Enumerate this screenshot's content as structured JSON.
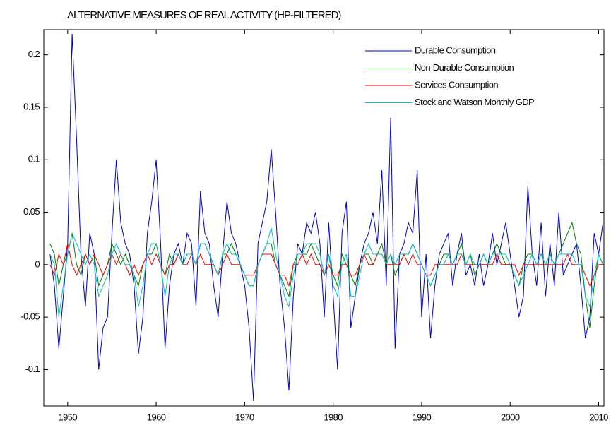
{
  "chart_data": {
    "type": "line",
    "title": "ALTERNATIVE MEASURES OF REAL ACTIVITY (HP-FILTERED)",
    "x": [
      1948,
      1948.5,
      1949,
      1949.5,
      1950,
      1950.5,
      1951,
      1951.5,
      1952,
      1952.5,
      1953,
      1953.5,
      1954,
      1954.5,
      1955,
      1955.5,
      1956,
      1956.5,
      1957,
      1957.5,
      1958,
      1958.5,
      1959,
      1959.5,
      1960,
      1960.5,
      1961,
      1961.5,
      1962,
      1962.5,
      1963,
      1963.5,
      1964,
      1964.5,
      1965,
      1965.5,
      1966,
      1966.5,
      1967,
      1967.5,
      1968,
      1968.5,
      1969,
      1969.5,
      1970,
      1970.5,
      1971,
      1971.5,
      1972,
      1972.5,
      1973,
      1973.5,
      1974,
      1974.5,
      1975,
      1975.5,
      1976,
      1976.5,
      1977,
      1977.5,
      1978,
      1978.5,
      1979,
      1979.5,
      1980,
      1980.5,
      1981,
      1981.5,
      1982,
      1982.5,
      1983,
      1983.5,
      1984,
      1984.5,
      1985,
      1985.5,
      1986,
      1986.5,
      1987,
      1987.5,
      1988,
      1988.5,
      1989,
      1989.5,
      1990,
      1990.5,
      1991,
      1991.5,
      1992,
      1992.5,
      1993,
      1993.5,
      1994,
      1994.5,
      1995,
      1995.5,
      1996,
      1996.5,
      1997,
      1997.5,
      1998,
      1998.5,
      1999,
      1999.5,
      2000,
      2000.5,
      2001,
      2001.5,
      2002,
      2002.5,
      2003,
      2003.5,
      2004,
      2004.5,
      2005,
      2005.5,
      2006,
      2006.5,
      2007,
      2007.5,
      2008,
      2008.5,
      2009,
      2009.5,
      2010,
      2010.5
    ],
    "series": [
      {
        "name": "Durable Consumption",
        "color": "#0000cc",
        "values": [
          0.01,
          -0.02,
          -0.08,
          -0.03,
          0.02,
          0.22,
          0.12,
          0.01,
          -0.04,
          0.03,
          0.01,
          -0.1,
          -0.06,
          -0.05,
          0.03,
          0.1,
          0.04,
          0.02,
          0.01,
          -0.02,
          -0.085,
          -0.05,
          0.03,
          0.06,
          0.1,
          0.02,
          -0.08,
          -0.02,
          0.01,
          0.02,
          0.0,
          0.03,
          0.02,
          -0.04,
          0.07,
          0.03,
          0.02,
          -0.02,
          -0.05,
          0.01,
          0.06,
          0.03,
          0.02,
          0.0,
          -0.02,
          -0.06,
          -0.13,
          0.02,
          0.04,
          0.06,
          0.11,
          0.05,
          -0.02,
          -0.06,
          -0.12,
          -0.03,
          0.02,
          0.01,
          0.04,
          0.03,
          0.05,
          0.02,
          -0.05,
          0.04,
          -0.03,
          -0.1,
          0.03,
          0.06,
          -0.06,
          -0.03,
          0.0,
          0.02,
          0.03,
          0.05,
          0.02,
          0.09,
          -0.02,
          0.14,
          -0.08,
          0.01,
          0.02,
          0.04,
          0.03,
          0.09,
          -0.05,
          0.01,
          -0.07,
          -0.02,
          0.01,
          0.02,
          0.03,
          -0.02,
          0.01,
          0.03,
          -0.01,
          0.0,
          -0.02,
          0.01,
          -0.02,
          0.0,
          0.03,
          0.0,
          0.02,
          0.04,
          0.01,
          -0.02,
          -0.05,
          -0.03,
          0.075,
          0.01,
          -0.02,
          0.04,
          -0.03,
          0.02,
          -0.02,
          0.05,
          -0.01,
          0.0,
          0.01,
          0.02,
          -0.02,
          -0.07,
          -0.05,
          0.03,
          0.01,
          0.04
        ]
      },
      {
        "name": "Non-Durable Consumption",
        "color": "#008000",
        "values": [
          0.02,
          0.01,
          -0.02,
          0.0,
          0.01,
          0.03,
          0.0,
          -0.01,
          0.01,
          0.0,
          0.01,
          -0.02,
          -0.01,
          0.0,
          0.02,
          0.01,
          0.0,
          0.01,
          0.0,
          -0.01,
          -0.02,
          0.0,
          0.01,
          0.01,
          0.02,
          0.0,
          -0.01,
          0.01,
          0.0,
          0.01,
          0.0,
          0.01,
          0.01,
          0.0,
          0.02,
          0.02,
          0.01,
          0.0,
          -0.01,
          0.01,
          0.01,
          0.02,
          0.01,
          0.0,
          -0.01,
          -0.02,
          -0.02,
          0.0,
          0.01,
          0.02,
          0.02,
          0.0,
          -0.01,
          -0.02,
          -0.03,
          0.0,
          0.01,
          0.01,
          0.01,
          0.02,
          0.01,
          0.0,
          -0.01,
          0.01,
          -0.01,
          -0.02,
          0.01,
          0.0,
          -0.01,
          -0.02,
          0.0,
          0.01,
          0.01,
          0.0,
          0.01,
          0.02,
          0.0,
          0.01,
          -0.01,
          0.0,
          0.01,
          0.01,
          0.02,
          0.01,
          0.0,
          -0.01,
          -0.02,
          -0.01,
          0.0,
          0.01,
          0.01,
          0.0,
          0.01,
          0.02,
          0.0,
          0.01,
          -0.01,
          0.0,
          0.01,
          0.0,
          0.01,
          0.02,
          0.01,
          0.0,
          0.0,
          -0.01,
          -0.02,
          0.0,
          0.01,
          0.01,
          0.0,
          0.01,
          0.0,
          0.01,
          0.0,
          0.01,
          0.02,
          0.03,
          0.04,
          0.02,
          0.01,
          -0.03,
          -0.06,
          -0.02,
          0.01,
          0.0
        ]
      },
      {
        "name": "Services Consumption",
        "color": "#ff0000",
        "values": [
          0.0,
          -0.01,
          0.01,
          0.0,
          0.02,
          0.0,
          -0.01,
          0.0,
          0.01,
          0.0,
          0.01,
          0.0,
          -0.01,
          0.0,
          0.01,
          0.0,
          0.01,
          0.0,
          -0.01,
          0.0,
          -0.01,
          0.0,
          0.01,
          0.0,
          0.01,
          0.0,
          -0.01,
          0.0,
          0.0,
          0.01,
          0.0,
          0.0,
          0.01,
          0.0,
          0.01,
          0.0,
          0.0,
          0.0,
          -0.01,
          0.0,
          0.01,
          0.0,
          0.0,
          0.0,
          -0.01,
          -0.01,
          -0.01,
          0.0,
          0.01,
          0.01,
          0.01,
          0.0,
          -0.01,
          -0.01,
          -0.02,
          0.0,
          0.0,
          0.01,
          0.0,
          0.01,
          0.0,
          0.0,
          -0.01,
          0.0,
          -0.01,
          -0.01,
          0.0,
          0.0,
          -0.01,
          -0.01,
          0.0,
          0.01,
          0.0,
          0.0,
          0.01,
          0.01,
          0.0,
          0.0,
          0.0,
          0.0,
          0.01,
          0.0,
          0.01,
          0.0,
          0.0,
          -0.01,
          -0.01,
          0.0,
          0.0,
          0.0,
          0.0,
          0.0,
          0.0,
          0.01,
          0.0,
          0.0,
          0.0,
          0.0,
          0.0,
          0.0,
          0.0,
          0.01,
          0.0,
          0.0,
          0.0,
          0.0,
          -0.01,
          0.0,
          0.0,
          0.0,
          0.0,
          0.0,
          0.0,
          0.0,
          0.0,
          0.0,
          0.0,
          0.01,
          0.0,
          0.0,
          0.0,
          -0.01,
          -0.02,
          -0.01,
          0.0,
          0.0
        ]
      },
      {
        "name": "Stock and Watson Monthly GDP",
        "color": "#00c0c0",
        "values": [
          0.01,
          0.0,
          -0.05,
          -0.02,
          0.01,
          0.03,
          0.02,
          0.01,
          0.0,
          0.01,
          0.0,
          -0.03,
          -0.02,
          -0.01,
          0.01,
          0.02,
          0.01,
          0.0,
          0.0,
          -0.01,
          -0.04,
          -0.02,
          0.01,
          0.02,
          0.02,
          0.0,
          -0.03,
          0.0,
          0.01,
          0.01,
          0.0,
          0.01,
          0.01,
          0.0,
          0.02,
          0.02,
          0.01,
          0.0,
          -0.01,
          0.01,
          0.02,
          0.01,
          0.01,
          0.0,
          -0.01,
          -0.02,
          -0.02,
          0.0,
          0.01,
          0.02,
          0.035,
          0.01,
          -0.01,
          -0.03,
          -0.04,
          -0.01,
          0.01,
          0.01,
          0.02,
          0.02,
          0.02,
          0.01,
          -0.01,
          0.01,
          -0.02,
          -0.03,
          0.0,
          0.01,
          -0.03,
          -0.03,
          -0.01,
          0.01,
          0.02,
          0.01,
          0.01,
          0.01,
          0.0,
          0.01,
          0.0,
          0.01,
          0.01,
          0.01,
          0.02,
          0.01,
          0.0,
          -0.01,
          -0.02,
          -0.01,
          0.0,
          0.0,
          0.01,
          0.0,
          0.01,
          0.01,
          0.0,
          0.01,
          0.0,
          0.0,
          0.01,
          0.0,
          0.01,
          0.01,
          0.01,
          0.01,
          0.0,
          -0.01,
          -0.02,
          -0.01,
          0.0,
          0.01,
          0.0,
          0.01,
          0.0,
          0.01,
          0.0,
          0.01,
          0.01,
          0.01,
          0.01,
          0.0,
          0.0,
          -0.03,
          -0.04,
          -0.01,
          0.01,
          0.0
        ]
      }
    ],
    "xlim": [
      1947.3,
      2010.6
    ],
    "xticks": [
      1950,
      1960,
      1970,
      1980,
      1990,
      2000,
      2010
    ],
    "ylim": [
      -0.1347,
      0.224
    ],
    "yticks": [
      -0.1,
      -0.05,
      0,
      0.05,
      0.1,
      0.15,
      0.2
    ],
    "legend": "top-right"
  }
}
